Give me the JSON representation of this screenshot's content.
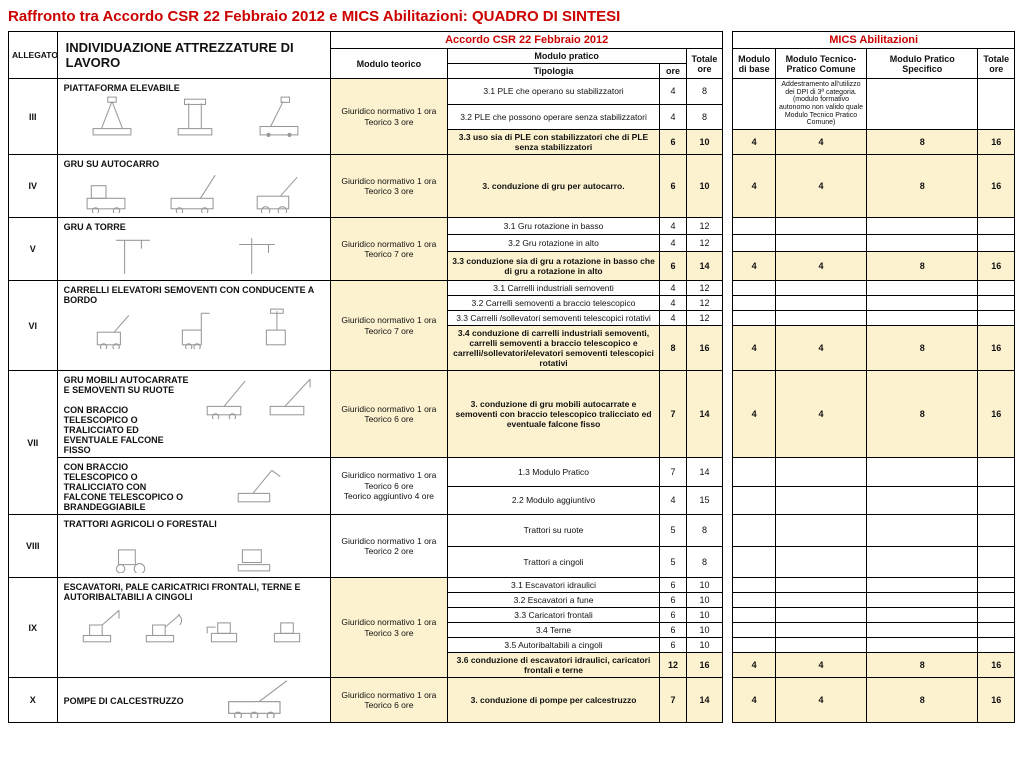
{
  "title": "Raffronto tra Accordo CSR 22 Febbraio 2012 e MICS Abilitazioni: QUADRO DI SINTESI",
  "headers": {
    "allegato": "ALLEGATO",
    "individuazione": "INDIVIDUAZIONE ATTREZZATURE DI LAVORO",
    "csr": "Accordo CSR 22 Febbraio 2012",
    "mics": "MICS Abilitazioni",
    "modulo_teorico": "Modulo teorico",
    "modulo_pratico": "Modulo pratico",
    "tipologia": "Tipologia",
    "ore": "ore",
    "totale_ore": "Totale ore",
    "modulo_base": "Modulo di base",
    "modulo_tecnico": "Modulo Tecnico-Pratico Comune",
    "modulo_pratico_spec": "Modulo Pratico Specifico"
  },
  "rows": {
    "iii": {
      "num": "III",
      "name": "PIATTAFORMA ELEVABILE",
      "teo": "Giuridico normativo 1 ora\nTeorico 3 ore",
      "r1": {
        "tip": "3.1 PLE che operano su stabilizzatori",
        "ore": "4",
        "tot": "8"
      },
      "r2": {
        "tip": "3.2 PLE che possono operare senza stabilizzatori",
        "ore": "4",
        "tot": "8"
      },
      "r3": {
        "tip": "3.3 uso sia di PLE con stabilizzatori che di PLE senza stabilizzatori",
        "ore": "6",
        "tot": "10"
      },
      "mics_note": "Addestramento all'utilizzo dei DPI di 3ª categoria.\n(modulo formativo autonomo non valido quale Modulo Tecnico Pratico Comune)",
      "mics": {
        "base": "4",
        "tec": "4",
        "prat": "8",
        "tot": "16"
      }
    },
    "iv": {
      "num": "IV",
      "name": "GRU SU AUTOCARRO",
      "teo": "Giuridico normativo 1 ora\nTeorico 3 ore",
      "r1": {
        "tip": "3. conduzione di gru per autocarro.",
        "ore": "6",
        "tot": "10"
      },
      "mics": {
        "base": "4",
        "tec": "4",
        "prat": "8",
        "tot": "16"
      }
    },
    "v": {
      "num": "V",
      "name": "GRU A TORRE",
      "teo": "Giuridico normativo 1 ora\nTeorico 7 ore",
      "r1": {
        "tip": "3.1 Gru rotazione in basso",
        "ore": "4",
        "tot": "12"
      },
      "r2": {
        "tip": "3.2 Gru rotazione in alto",
        "ore": "4",
        "tot": "12"
      },
      "r3": {
        "tip": "3.3 conduzione sia di gru a rotazione in basso che di gru a rotazione in alto",
        "ore": "6",
        "tot": "14"
      },
      "mics": {
        "base": "4",
        "tec": "4",
        "prat": "8",
        "tot": "16"
      }
    },
    "vi": {
      "num": "VI",
      "name": "CARRELLI ELEVATORI SEMOVENTI CON CONDUCENTE A BORDO",
      "teo": "Giuridico normativo 1 ora\nTeorico 7 ore",
      "r1": {
        "tip": "3.1 Carrelli industriali semoventi",
        "ore": "4",
        "tot": "12"
      },
      "r2": {
        "tip": "3.2 Carrelli semoventi a braccio telescopico",
        "ore": "4",
        "tot": "12"
      },
      "r3": {
        "tip": "3.3 Carrelli /sollevatori semoventi telescopici rotativi",
        "ore": "4",
        "tot": "12"
      },
      "r4": {
        "tip": "3.4 conduzione di carrelli industriali semoventi, carrelli semoventi a braccio telescopico e carrelli/sollevatori/elevatori semoventi telescopici rotativi",
        "ore": "8",
        "tot": "16"
      },
      "mics": {
        "base": "4",
        "tec": "4",
        "prat": "8",
        "tot": "16"
      }
    },
    "vii": {
      "num": "VII",
      "name1": "GRU MOBILI AUTOCARRATE E SEMOVENTI SU RUOTE\n\nCON BRACCIO TELESCOPICO O TRALICCIATO ED EVENTUALE FALCONE FISSO",
      "name2": "CON BRACCIO TELESCOPICO O TRALICCIATO CON FALCONE TELESCOPICO O BRANDEGGIABILE",
      "teo1": "Giuridico normativo 1 ora\nTeorico 6 ore",
      "teo2": "Giuridico normativo 1 ora\nTeorico 6 ore\nTeorico aggiuntivo 4 ore",
      "r1": {
        "tip": "3. conduzione di gru mobili autocarrate e semoventi con braccio telescopico tralicciato ed eventuale falcone fisso",
        "ore": "7",
        "tot": "14"
      },
      "r2": {
        "tip": "1.3 Modulo Pratico",
        "ore": "7",
        "tot": "14"
      },
      "r3": {
        "tip": "2.2 Modulo aggiuntivo",
        "ore": "4",
        "tot": "15"
      },
      "mics": {
        "base": "4",
        "tec": "4",
        "prat": "8",
        "tot": "16"
      }
    },
    "viii": {
      "num": "VIII",
      "name": "TRATTORI AGRICOLI O FORESTALI",
      "teo": "Giuridico normativo 1 ora\nTeorico 2 ore",
      "r1": {
        "tip": "Trattori su ruote",
        "ore": "5",
        "tot": "8"
      },
      "r2": {
        "tip": "Trattori a cingoli",
        "ore": "5",
        "tot": "8"
      }
    },
    "ix": {
      "num": "IX",
      "name": "ESCAVATORI, PALE CARICATRICI FRONTALI, TERNE E AUTORIBALTABILI A CINGOLI",
      "teo": "Giuridico normativo 1 ora\nTeorico 3 ore",
      "r1": {
        "tip": "3.1 Escavatori idraulici",
        "ore": "6",
        "tot": "10"
      },
      "r2": {
        "tip": "3.2 Escavatori a fune",
        "ore": "6",
        "tot": "10"
      },
      "r3": {
        "tip": "3.3 Caricatori frontali",
        "ore": "6",
        "tot": "10"
      },
      "r4": {
        "tip": "3.4 Terne",
        "ore": "6",
        "tot": "10"
      },
      "r5": {
        "tip": "3.5 Autoribaltabili a cingoli",
        "ore": "6",
        "tot": "10"
      },
      "r6": {
        "tip": "3.6 conduzione di escavatori idraulici, caricatori frontali e terne",
        "ore": "12",
        "tot": "16"
      },
      "mics": {
        "base": "4",
        "tec": "4",
        "prat": "8",
        "tot": "16"
      }
    },
    "x": {
      "num": "X",
      "name": "POMPE DI CALCESTRUZZO",
      "teo": "Giuridico normativo 1 ora\nTeorico 6 ore",
      "r1": {
        "tip": "3. conduzione di pompe per calcestruzzo",
        "ore": "7",
        "tot": "14"
      },
      "mics": {
        "base": "4",
        "tec": "4",
        "prat": "8",
        "tot": "16"
      }
    }
  }
}
